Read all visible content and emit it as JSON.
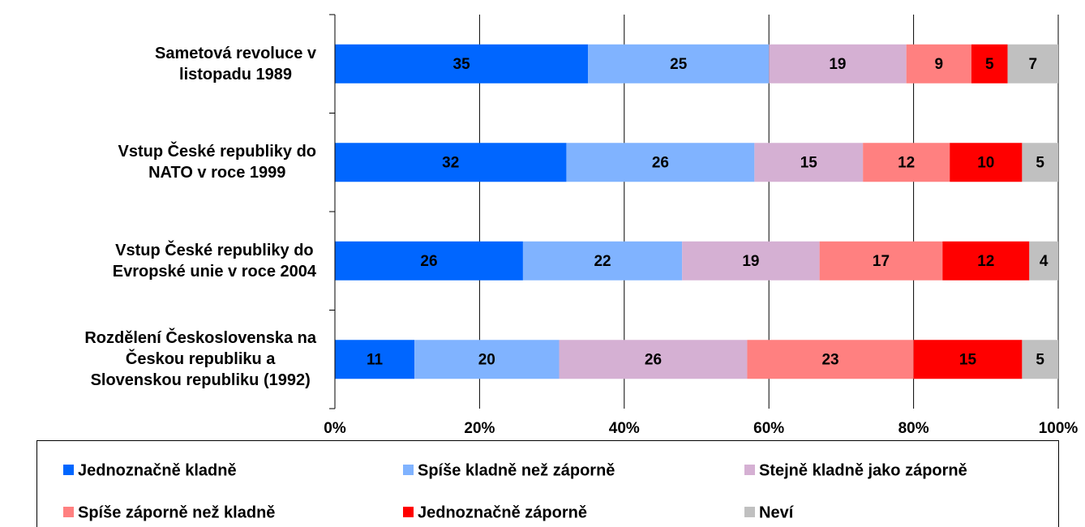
{
  "chart_data": {
    "type": "stacked-bar-horizontal",
    "categories": [
      "Sametová revoluce v\nlistopadu 1989",
      "Vstup České republiky do\nNATO v roce 1999",
      "Vstup České republiky do\nEvropské unie v roce 2004",
      "Rozdělení Československa na\nČeskou republiku a\nSlovenskou republiku (1992)"
    ],
    "series": [
      {
        "name": "Jednoznačně kladně",
        "color": "#0066ff",
        "values": [
          35,
          32,
          26,
          11
        ]
      },
      {
        "name": "Spíše kladně než záporně",
        "color": "#80b3ff",
        "values": [
          25,
          26,
          22,
          20
        ]
      },
      {
        "name": "Stejně kladně jako záporně",
        "color": "#d5b0d3",
        "values": [
          19,
          15,
          19,
          26
        ]
      },
      {
        "name": "Spíše záporně než kladně",
        "color": "#ff8080",
        "values": [
          9,
          12,
          17,
          23
        ]
      },
      {
        "name": "Jednoznačně záporně",
        "color": "#ff0000",
        "values": [
          5,
          10,
          12,
          15
        ]
      },
      {
        "name": "Neví",
        "color": "#c0c0c0",
        "values": [
          7,
          5,
          4,
          5
        ]
      }
    ],
    "xlim": [
      0,
      100
    ],
    "xticks": [
      {
        "value": 0,
        "label": "0%"
      },
      {
        "value": 20,
        "label": "20%"
      },
      {
        "value": 40,
        "label": "40%"
      },
      {
        "value": 60,
        "label": "60%"
      },
      {
        "value": 80,
        "label": "80%"
      },
      {
        "value": 100,
        "label": "100%"
      }
    ],
    "grid": true,
    "legend": "bottom"
  }
}
